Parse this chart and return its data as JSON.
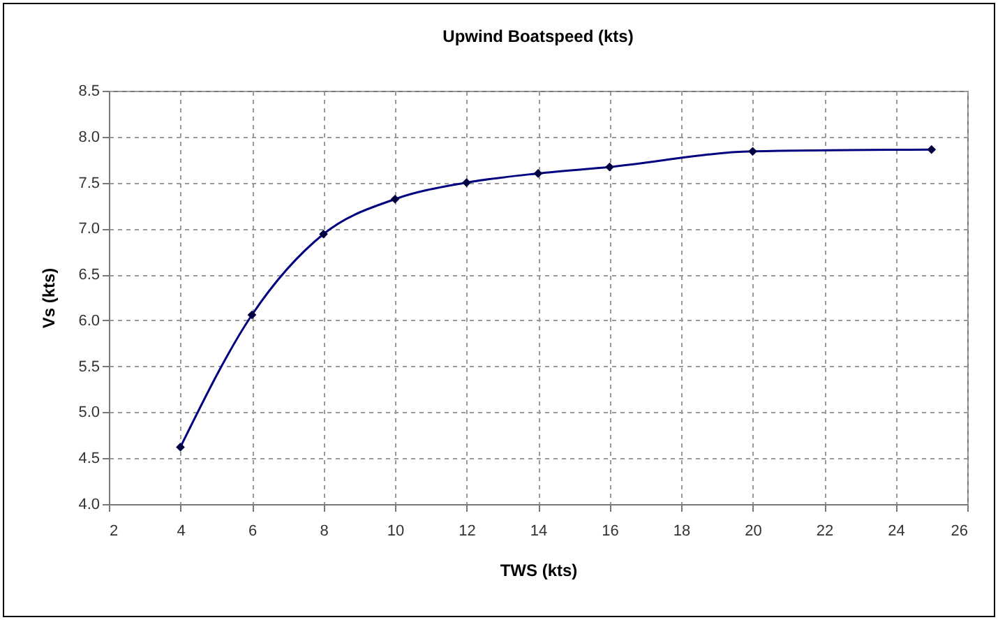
{
  "chart_data": {
    "type": "line",
    "title": "Upwind Boatspeed (kts)",
    "xlabel": "TWS (kts)",
    "ylabel": "Vs (kts)",
    "x": [
      4,
      6,
      8,
      10,
      12,
      14,
      16,
      20,
      25
    ],
    "series": [
      {
        "color": "#000080",
        "values": [
          4.62,
          6.06,
          6.94,
          7.32,
          7.5,
          7.6,
          7.67,
          7.84,
          7.86
        ]
      }
    ],
    "xlim": [
      2,
      26
    ],
    "xticks": [
      2,
      4,
      6,
      8,
      10,
      12,
      14,
      16,
      18,
      20,
      22,
      24,
      26
    ],
    "ylim": [
      4,
      8.5
    ],
    "yticks": [
      {
        "value": 4,
        "label": "4.0"
      },
      {
        "value": 4.5,
        "label": "4.5"
      },
      {
        "value": 5,
        "label": "5.0"
      },
      {
        "value": 5.5,
        "label": "5.5"
      },
      {
        "value": 6,
        "label": "6.0"
      },
      {
        "value": 6.5,
        "label": "6.5"
      },
      {
        "value": 7,
        "label": "7.0"
      },
      {
        "value": 7.5,
        "label": "7.5"
      },
      {
        "value": 8,
        "label": "8.0"
      },
      {
        "value": 8.5,
        "label": "8.5"
      }
    ],
    "grid": true,
    "marker": "diamond",
    "line_style": "solid"
  }
}
